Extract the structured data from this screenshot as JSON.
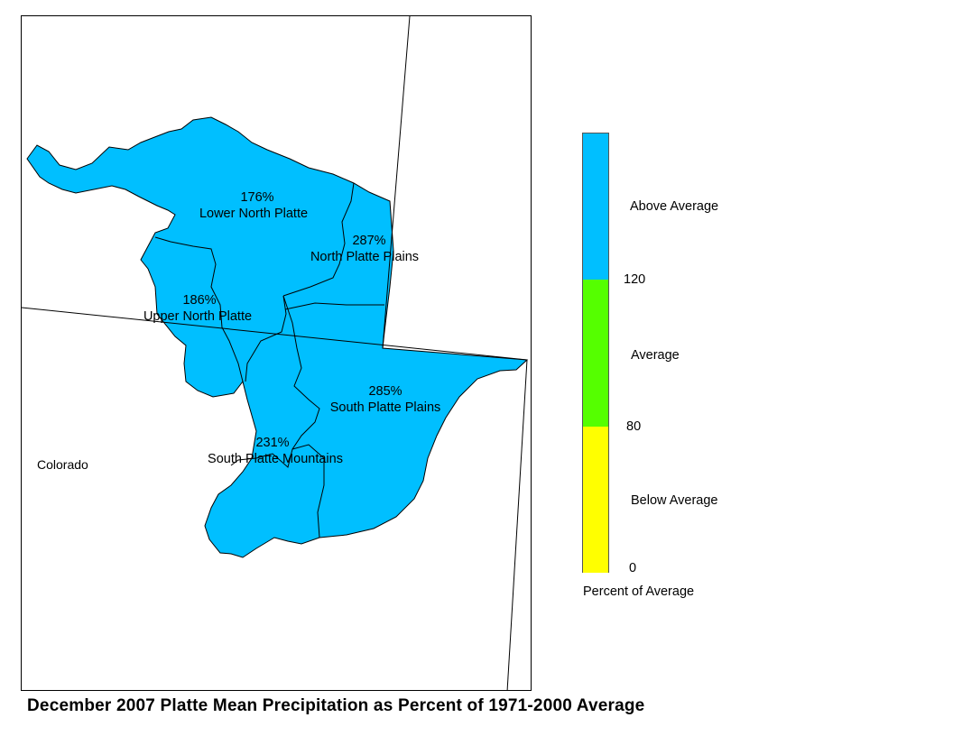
{
  "title": "December 2007 Platte Mean Precipitation as Percent of 1971-2000 Average",
  "map": {
    "state_label": "Colorado",
    "basin_fill_color": "#00bfff",
    "basins": [
      {
        "name": "Lower North Platte",
        "percent": "176%"
      },
      {
        "name": "North Platte Plains",
        "percent": "287%"
      },
      {
        "name": "Upper North Platte",
        "percent": "186%"
      },
      {
        "name": "South Platte Plains",
        "percent": "285%"
      },
      {
        "name": "South Platte Mountains",
        "percent": "231%"
      }
    ]
  },
  "legend": {
    "title": "Percent of Average",
    "categories": [
      {
        "label": "Above Average",
        "color": "#00bfff"
      },
      {
        "label": "Average",
        "color": "#55ff00"
      },
      {
        "label": "Below Average",
        "color": "#ffff00"
      }
    ],
    "breaks": [
      "120",
      "80",
      "0"
    ]
  }
}
